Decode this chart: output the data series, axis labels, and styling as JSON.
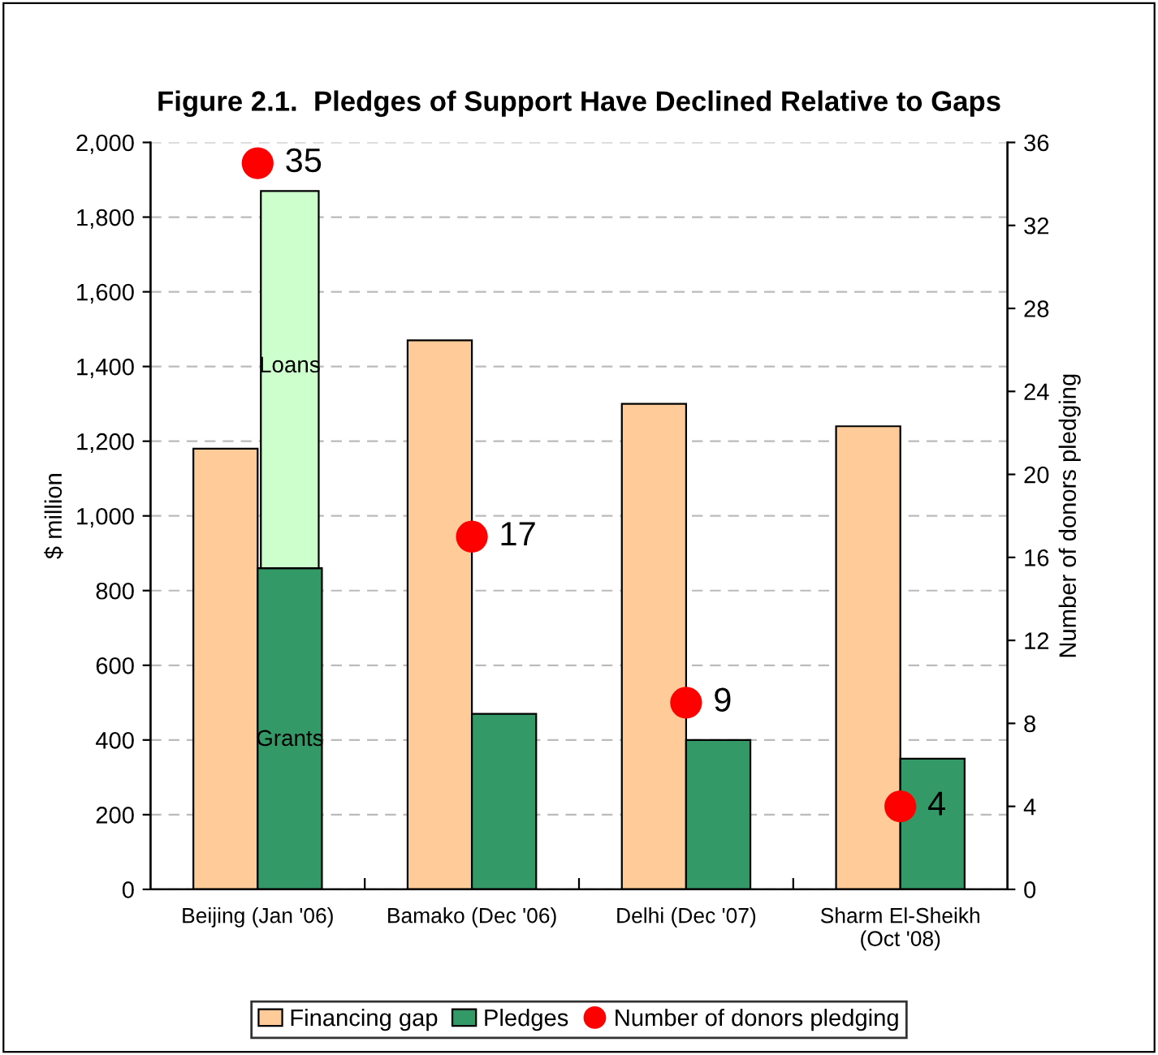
{
  "chart_data": {
    "type": "bar",
    "title": "Figure 2.1.  Pledges of Support Have Declined Relative to Gaps",
    "categories": [
      "Beijing (Jan '06)",
      "Bamako (Dec '06)",
      "Delhi (Dec '07)",
      "Sharm El-Sheikh\n(Oct '08)"
    ],
    "series": [
      {
        "name": "Financing gap",
        "color": "#ffcc99",
        "values": [
          1180,
          1470,
          1300,
          1240
        ]
      },
      {
        "name": "Pledges",
        "color": "#339966",
        "values": [
          860,
          470,
          400,
          350
        ]
      },
      {
        "color": "#ccffcc",
        "values": [
          1010,
          null,
          null,
          null
        ],
        "base": [
          860,
          null,
          null,
          null
        ]
      },
      {
        "name": "Number of donors pledging",
        "type": "scatter",
        "axis": "y2",
        "color": "#ff0000",
        "values": [
          35,
          17,
          9,
          4
        ],
        "value_labels": [
          "35",
          "17",
          "9",
          "4"
        ]
      }
    ],
    "ylabel": "$ million",
    "y2label": "Number of donors pledging",
    "ylim": [
      0,
      2000
    ],
    "yticks": [
      0,
      {
        "value": 200,
        "label": "200"
      },
      {
        "value": 400,
        "label": "400"
      },
      {
        "value": 600,
        "label": "600"
      },
      {
        "value": 800,
        "label": "800"
      },
      {
        "value": 1000,
        "label": "1,000"
      },
      {
        "value": 1200,
        "label": "1,200"
      },
      {
        "value": 1400,
        "label": "1,400"
      },
      {
        "value": 1600,
        "label": "1,600"
      },
      {
        "value": 1800,
        "label": "1,800"
      },
      {
        "value": 2000,
        "label": "2,000"
      }
    ],
    "y2lim": [
      0,
      36
    ],
    "y2ticks": [
      0,
      4,
      8,
      12,
      16,
      20,
      24,
      28,
      32,
      36
    ],
    "annotations": [
      {
        "text": "Loans",
        "x": "Beijing (Jan '06)",
        "y": 1400
      },
      {
        "text": "Grants",
        "x": "Beijing (Jan '06)",
        "y": 400
      }
    ],
    "grid": "y",
    "legend": "bottom",
    "marker": "circle"
  }
}
